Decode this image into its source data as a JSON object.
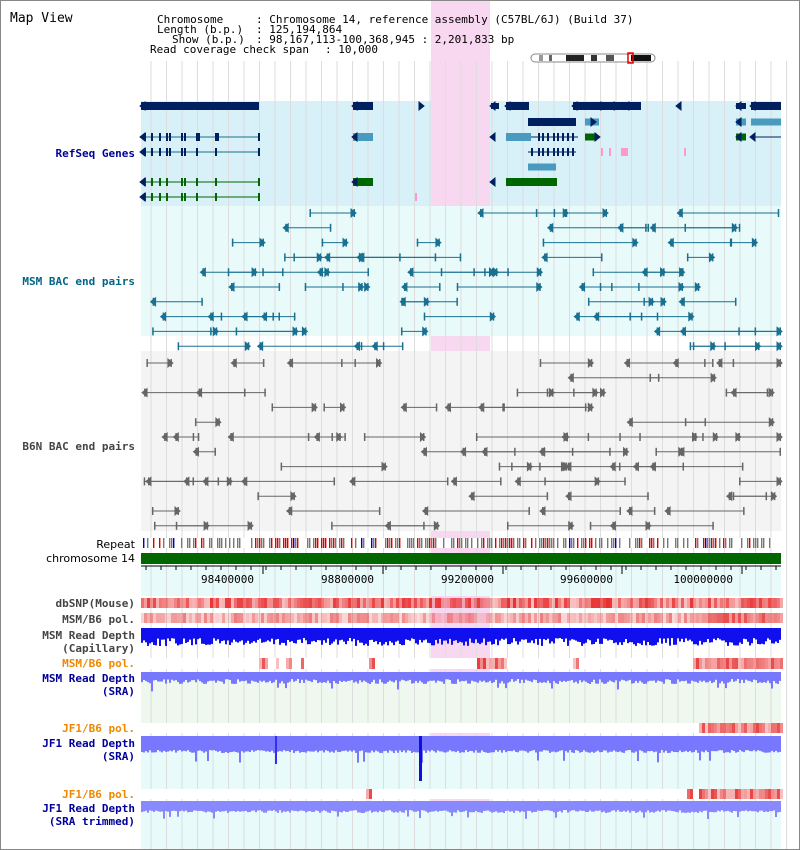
{
  "view": {
    "title": "Map View"
  },
  "header": {
    "chromosome_key": "Chromosome",
    "chromosome_value": ": Chromosome 14, reference assembly (C57BL/6J) (Build 37)",
    "length_key": "Length (b.p.)",
    "length_value": ": 125,194,864",
    "show_key": "Show (b.p.)",
    "show_value": ": 98,167,113-100,368,945 : 2,201,833 bp",
    "span_key": "Read coverage check span",
    "span_value": ": 10,000"
  },
  "tracks": {
    "refseq": "RefSeq Genes",
    "msm_bac": "MSM BAC end pairs",
    "b6n_bac": "B6N BAC end pairs",
    "repeat": "Repeat",
    "chrom": "chromosome 14",
    "dbsnp": "dbSNP(Mouse)",
    "msm_pol1": "MSM/B6 pol.",
    "msm_depth_cap_1": "MSM Read Depth",
    "msm_depth_cap_2": "(Capillary)",
    "msm_pol2": "MSM/B6 pol.",
    "msm_depth_sra_1": "MSM Read Depth",
    "msm_depth_sra_2": "(SRA)",
    "jf1_pol1": "JF1/B6 pol.",
    "jf1_depth_1": "JF1 Read Depth",
    "jf1_depth_2": "(SRA)",
    "jf1_pol2": "JF1/B6 pol.",
    "jf1_trim_1": "JF1 Read Depth",
    "jf1_trim_2": "(SRA trimmed)"
  },
  "axis": {
    "ticks": [
      "98400000",
      "98800000",
      "99200000",
      "99600000",
      "100000000"
    ]
  },
  "colors": {
    "refseq_label": "#000099",
    "msm_label": "#006688",
    "b6n_label": "#444444",
    "pol_label": "#ee8800",
    "depth_label": "#000099",
    "highlight": "#f8d8f0",
    "refseq_bg": "#d8f0f8",
    "bac_bg": "#e8fafa",
    "gene_dark": "#002060",
    "gene_mid": "#4a9abf",
    "gene_green": "#006600",
    "msm_feature": "#1a7090",
    "b6n_feature": "#666666",
    "depth_blue": "#1010ee",
    "depth_light": "#7878ff",
    "snp_red": "#e83030",
    "chrom_green": "#006600"
  }
}
